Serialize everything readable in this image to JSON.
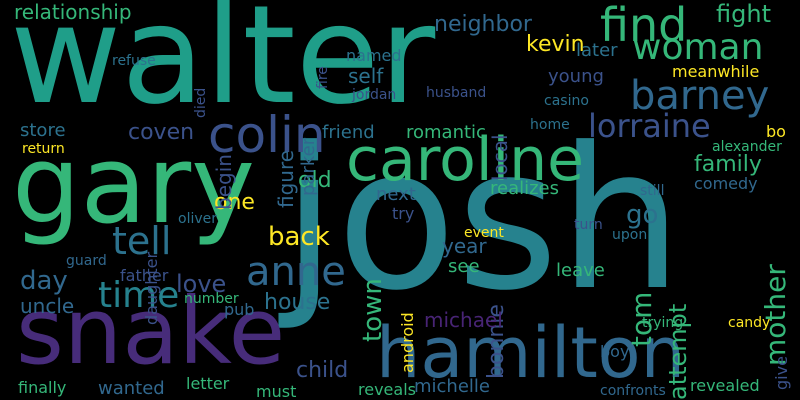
{
  "colors": {
    "background": "#000000",
    "palette": [
      "#440154",
      "#46327e",
      "#365c8d",
      "#277f8e",
      "#1fa187",
      "#4ac16d",
      "#a0da39",
      "#fde725"
    ]
  },
  "words": [
    {
      "text": "josh",
      "color": "#26828e"
    },
    {
      "text": "walter",
      "color": "#1f9e89"
    },
    {
      "text": "gary",
      "color": "#35b779"
    },
    {
      "text": "snake",
      "color": "#472c7a"
    },
    {
      "text": "hamilton",
      "color": "#31688e"
    },
    {
      "text": "caroline",
      "color": "#35b779"
    },
    {
      "text": "find",
      "color": "#35b779"
    },
    {
      "text": "woman",
      "color": "#35b779"
    },
    {
      "text": "barney",
      "color": "#31688e"
    },
    {
      "text": "lorraine",
      "color": "#3b528b"
    },
    {
      "text": "colin",
      "color": "#3b528b"
    },
    {
      "text": "anne",
      "color": "#31688e"
    },
    {
      "text": "tell",
      "color": "#2c728e"
    },
    {
      "text": "time",
      "color": "#26828e"
    },
    {
      "text": "relationship",
      "color": "#35b779"
    },
    {
      "text": "neighbor",
      "color": "#31688e"
    },
    {
      "text": "kevin",
      "color": "#fde725"
    },
    {
      "text": "fight",
      "color": "#35b779"
    },
    {
      "text": "mother",
      "color": "#35b779"
    },
    {
      "text": "coven",
      "color": "#3b528b"
    },
    {
      "text": "store",
      "color": "#2c728e"
    },
    {
      "text": "back",
      "color": "#fde725"
    },
    {
      "text": "one",
      "color": "#fde725"
    },
    {
      "text": "day",
      "color": "#31688e"
    },
    {
      "text": "uncle",
      "color": "#31688e"
    },
    {
      "text": "house",
      "color": "#2c728e"
    },
    {
      "text": "child",
      "color": "#3b528b"
    },
    {
      "text": "love",
      "color": "#3b528b"
    },
    {
      "text": "town",
      "color": "#35b779"
    },
    {
      "text": "bonnie",
      "color": "#3b528b"
    },
    {
      "text": "tom",
      "color": "#35b779"
    },
    {
      "text": "attempt",
      "color": "#35b779"
    },
    {
      "text": "family",
      "color": "#35b779"
    },
    {
      "text": "michael",
      "color": "#482475"
    },
    {
      "text": "michelle",
      "color": "#31688e"
    },
    {
      "text": "old",
      "color": "#35b779"
    },
    {
      "text": "figure",
      "color": "#31688e"
    },
    {
      "text": "begin",
      "color": "#3b528b"
    },
    {
      "text": "local",
      "color": "#3b528b"
    },
    {
      "text": "later",
      "color": "#2c728e"
    },
    {
      "text": "young",
      "color": "#3b528b"
    },
    {
      "text": "meanwhile",
      "color": "#fde725"
    },
    {
      "text": "self",
      "color": "#2c728e"
    },
    {
      "text": "named",
      "color": "#2c728e"
    },
    {
      "text": "friend",
      "color": "#2c728e"
    },
    {
      "text": "romantic",
      "color": "#35b779"
    },
    {
      "text": "return",
      "color": "#fde725"
    },
    {
      "text": "next",
      "color": "#31688e"
    },
    {
      "text": "realizes",
      "color": "#35b779"
    },
    {
      "text": "year",
      "color": "#31688e"
    },
    {
      "text": "see",
      "color": "#35b779"
    },
    {
      "text": "leave",
      "color": "#35b779"
    },
    {
      "text": "go",
      "color": "#2c728e"
    },
    {
      "text": "comedy",
      "color": "#31688e"
    },
    {
      "text": "still",
      "color": "#31688e"
    },
    {
      "text": "bo",
      "color": "#fde725"
    },
    {
      "text": "daughter",
      "color": "#3b528b"
    },
    {
      "text": "parker",
      "color": "#31688e"
    },
    {
      "text": "android",
      "color": "#fde725"
    },
    {
      "text": "home",
      "color": "#2c728e"
    },
    {
      "text": "husband",
      "color": "#3b528b"
    },
    {
      "text": "casino",
      "color": "#2c728e"
    },
    {
      "text": "jordan",
      "color": "#3b528b"
    },
    {
      "text": "pub",
      "color": "#31688e"
    },
    {
      "text": "father",
      "color": "#3b528b"
    },
    {
      "text": "letter",
      "color": "#35b779"
    },
    {
      "text": "wanted",
      "color": "#31688e"
    },
    {
      "text": "finally",
      "color": "#35b779"
    },
    {
      "text": "reveals",
      "color": "#35b779"
    },
    {
      "text": "confronts",
      "color": "#31688e"
    },
    {
      "text": "revealed",
      "color": "#35b779"
    },
    {
      "text": "trying",
      "color": "#35b779"
    },
    {
      "text": "candy",
      "color": "#fde725"
    },
    {
      "text": "give",
      "color": "#3b528b"
    },
    {
      "text": "boy",
      "color": "#31688e"
    },
    {
      "text": "turn",
      "color": "#3b528b"
    },
    {
      "text": "upon",
      "color": "#2c728e"
    },
    {
      "text": "event",
      "color": "#fde725"
    },
    {
      "text": "try",
      "color": "#3b528b"
    },
    {
      "text": "refuse",
      "color": "#2c728e"
    },
    {
      "text": "guard",
      "color": "#31688e"
    },
    {
      "text": "oliver",
      "color": "#2c728e"
    },
    {
      "text": "must",
      "color": "#35b779"
    },
    {
      "text": "alexander",
      "color": "#35b779"
    },
    {
      "text": "number",
      "color": "#35b779"
    },
    {
      "text": "died",
      "color": "#3b528b"
    },
    {
      "text": "fire",
      "color": "#3b528b"
    }
  ]
}
